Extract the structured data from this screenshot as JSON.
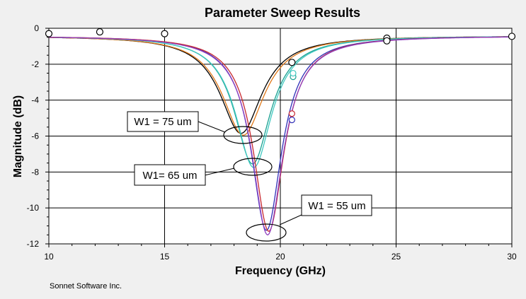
{
  "chart_data": {
    "type": "line",
    "title": "Parameter Sweep Results",
    "xlabel": "Frequency (GHz)",
    "ylabel": "Magnitude (dB)",
    "xlim": [
      10,
      30
    ],
    "ylim": [
      -12,
      0
    ],
    "xticks": [
      10,
      15,
      20,
      25,
      30
    ],
    "yticks": [
      0,
      -2,
      -4,
      -6,
      -8,
      -10,
      -12
    ],
    "grid": true,
    "series": [
      {
        "name": "W1 = 75 um (a)",
        "color": "#000000",
        "f0": 18.3,
        "depth": 5.85,
        "w": 1.1,
        "base": 0.42,
        "markers": []
      },
      {
        "name": "W1 = 75 um (b)",
        "color": "#e07818",
        "f0": 18.4,
        "depth": 5.95,
        "w": 1.1,
        "base": 0.42,
        "markers": []
      },
      {
        "name": "W1= 65 um (a)",
        "color": "#18a090",
        "f0": 18.8,
        "depth": 7.55,
        "w": 0.95,
        "base": 0.42,
        "markers": [
          [
            20.55,
            -2.7
          ]
        ]
      },
      {
        "name": "W1= 65 um (b)",
        "color": "#40c8c0",
        "f0": 18.85,
        "depth": 7.75,
        "w": 0.95,
        "base": 0.42,
        "markers": [
          [
            20.55,
            -2.5
          ]
        ]
      },
      {
        "name": "W1 = 55 um (a)",
        "color": "#3030b8",
        "f0": 19.4,
        "depth": 11.25,
        "w": 0.8,
        "base": 0.42,
        "markers": [
          [
            20.5,
            -5.1
          ]
        ]
      },
      {
        "name": "W1 = 55 um (b)",
        "color": "#c82830",
        "f0": 19.5,
        "depth": 11.3,
        "w": 0.8,
        "base": 0.42,
        "markers": [
          [
            20.5,
            -4.75
          ]
        ]
      },
      {
        "name": "W1 = 55 um (c)",
        "color": "#9040c0",
        "f0": 19.45,
        "depth": 11.5,
        "w": 0.82,
        "base": 0.42,
        "markers": []
      }
    ],
    "common_markers": [
      [
        10,
        -0.3
      ],
      [
        12.2,
        -0.2
      ],
      [
        15,
        -0.3
      ],
      [
        20.5,
        -1.9
      ],
      [
        24.6,
        -0.55
      ],
      [
        24.6,
        -0.7
      ],
      [
        30,
        -0.45
      ]
    ],
    "annotations": [
      {
        "text": "W1 = 75 um",
        "target": [
          18.2,
          -5.95
        ]
      },
      {
        "text": "W1= 65 um",
        "target": [
          18.7,
          -7.7
        ]
      },
      {
        "text": "W1 = 55 um",
        "target": [
          19.35,
          -11.45
        ]
      }
    ],
    "credit": "Sonnet Software Inc."
  }
}
